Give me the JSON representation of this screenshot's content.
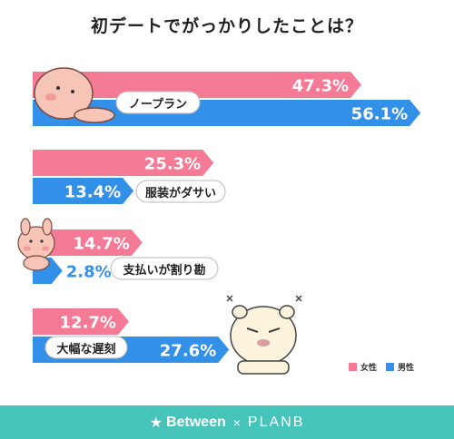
{
  "title": "初デートでがっかりしたことは？",
  "colors": {
    "female": "#f47a95",
    "male": "#3290e8",
    "footer": "#46c4ba"
  },
  "legend": {
    "female": "女性",
    "male": "男性"
  },
  "footer": {
    "star": "★",
    "brand1": "Between",
    "cross": "×",
    "brand2": "PLANB"
  },
  "chart_data": {
    "type": "bar",
    "orientation": "horizontal",
    "categories": [
      "ノープラン",
      "服装がダサい",
      "支払いが割り勘",
      "大幅な遅刻"
    ],
    "series": [
      {
        "name": "女性",
        "values": [
          47.3,
          25.3,
          14.7,
          12.7
        ]
      },
      {
        "name": "男性",
        "values": [
          56.1,
          13.4,
          2.8,
          27.6
        ]
      }
    ],
    "value_labels": [
      [
        "47.3%",
        "25.3%",
        "14.7%",
        "12.7%"
      ],
      [
        "56.1%",
        "13.4%",
        "2.8%",
        "27.6%"
      ]
    ],
    "xlim": [
      0,
      60
    ],
    "legend_position": "bottom-right"
  }
}
